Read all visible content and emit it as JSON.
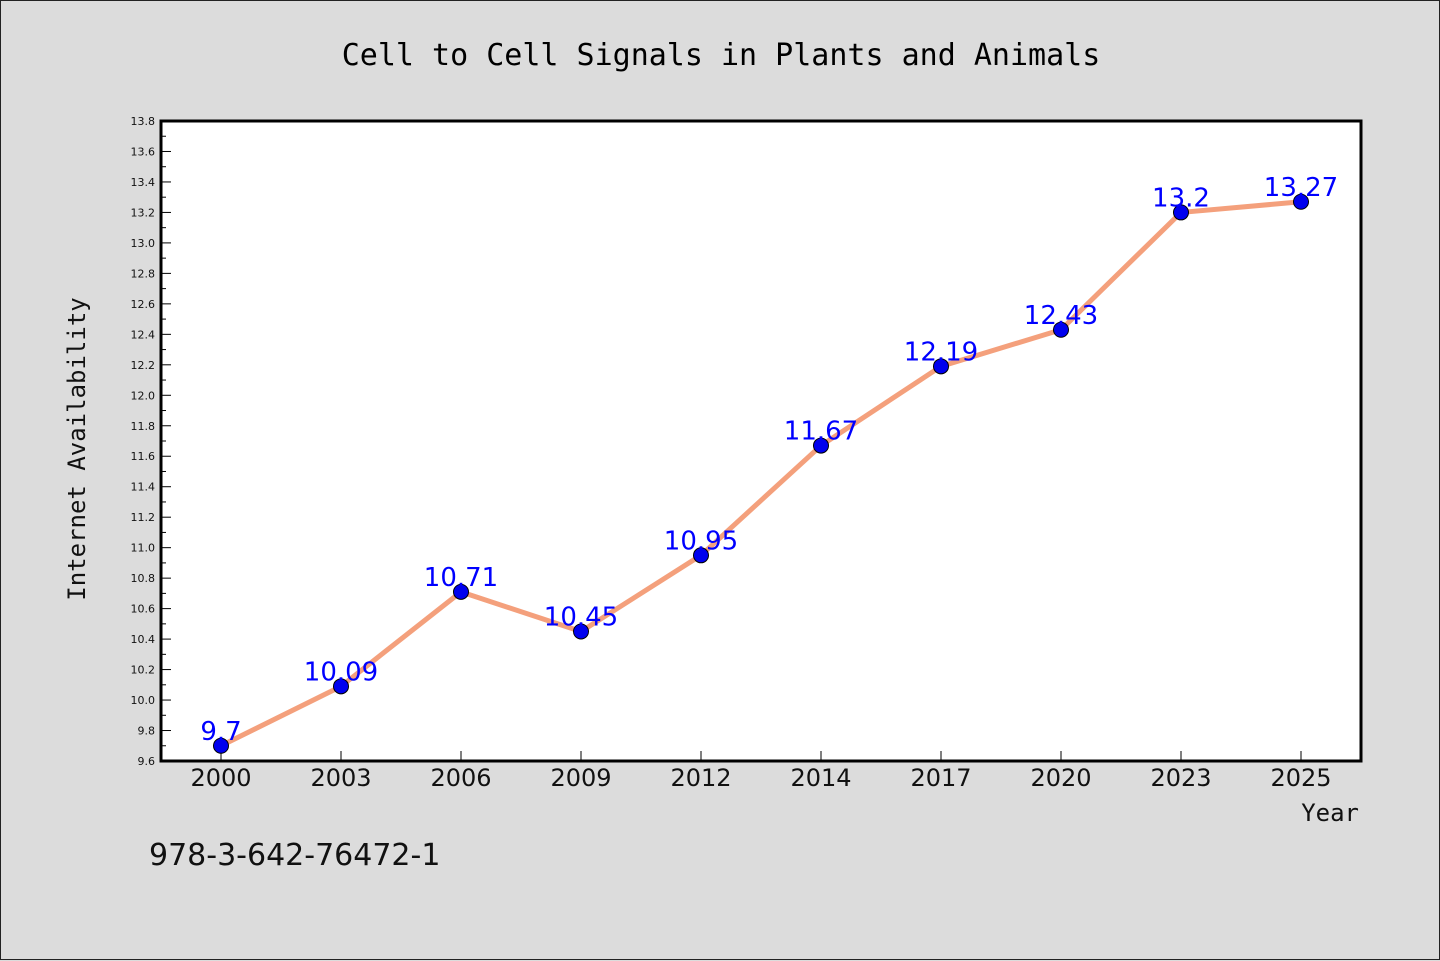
{
  "chart_data": {
    "type": "line",
    "title": "Cell to Cell Signals in Plants and Animals",
    "xlabel": "Year",
    "ylabel": "Internet Availability",
    "categories": [
      "2000",
      "2003",
      "2006",
      "2009",
      "2012",
      "2014",
      "2017",
      "2020",
      "2023",
      "2025"
    ],
    "values": [
      9.7,
      10.09,
      10.71,
      10.45,
      10.95,
      11.67,
      12.19,
      12.43,
      13.2,
      13.27
    ],
    "data_labels": [
      "9.7",
      "10.09",
      "10.71",
      "10.45",
      "10.95",
      "11.67",
      "12.19",
      "12.43",
      "13.2",
      "13.27"
    ],
    "ylim": [
      9.6,
      13.8
    ],
    "yticks": [
      "9.6",
      "9.8",
      "10.0",
      "10.2",
      "10.4",
      "10.6",
      "10.8",
      "11.0",
      "11.2",
      "11.4",
      "11.6",
      "11.8",
      "12.0",
      "12.2",
      "12.4",
      "12.6",
      "12.8",
      "13.0",
      "13.2",
      "13.4",
      "13.6",
      "13.8"
    ],
    "grid": false,
    "line_color": "#f4a07c",
    "marker_color": "#0000ee",
    "label_color": "#0000ff"
  },
  "footer": {
    "isbn": "978-3-642-76472-1"
  }
}
